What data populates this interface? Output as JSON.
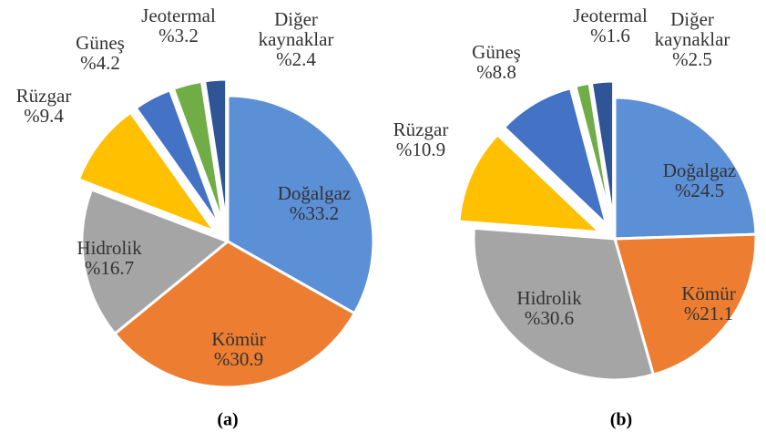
{
  "chart_data": [
    {
      "type": "pie",
      "title": "(a)",
      "categories": [
        "Doğalgaz",
        "Kömür",
        "Hidrolik",
        "Rüzgar",
        "Güneş",
        "Jeotermal",
        "Diğer kaynaklar"
      ],
      "values": [
        33.2,
        30.9,
        16.7,
        9.4,
        4.2,
        3.2,
        2.4
      ],
      "value_labels": [
        "%33.2",
        "%30.9",
        "%16.7",
        "%9.4",
        "%4.2",
        "%3.2",
        "%2.4"
      ],
      "colors": [
        "#5b8fd6",
        "#ed7d31",
        "#a5a5a5",
        "#ffc000",
        "#4472c4",
        "#70ad47",
        "#2f5597"
      ],
      "explode": [
        false,
        false,
        false,
        true,
        true,
        true,
        true
      ]
    },
    {
      "type": "pie",
      "title": "(b)",
      "categories": [
        "Doğalgaz",
        "Kömür",
        "Hidrolik",
        "Rüzgar",
        "Güneş",
        "Jeotermal",
        "Diğer kaynaklar"
      ],
      "values": [
        24.5,
        21.1,
        30.6,
        10.9,
        8.8,
        1.6,
        2.5
      ],
      "value_labels": [
        "%24.5",
        "%21.1",
        "%30.6",
        "%10.9",
        "%8.8",
        "%1.6",
        "%2.5"
      ],
      "colors": [
        "#5b8fd6",
        "#ed7d31",
        "#a5a5a5",
        "#ffc000",
        "#4472c4",
        "#70ad47",
        "#2f5597"
      ],
      "explode": [
        false,
        false,
        false,
        true,
        true,
        true,
        true
      ]
    }
  ]
}
